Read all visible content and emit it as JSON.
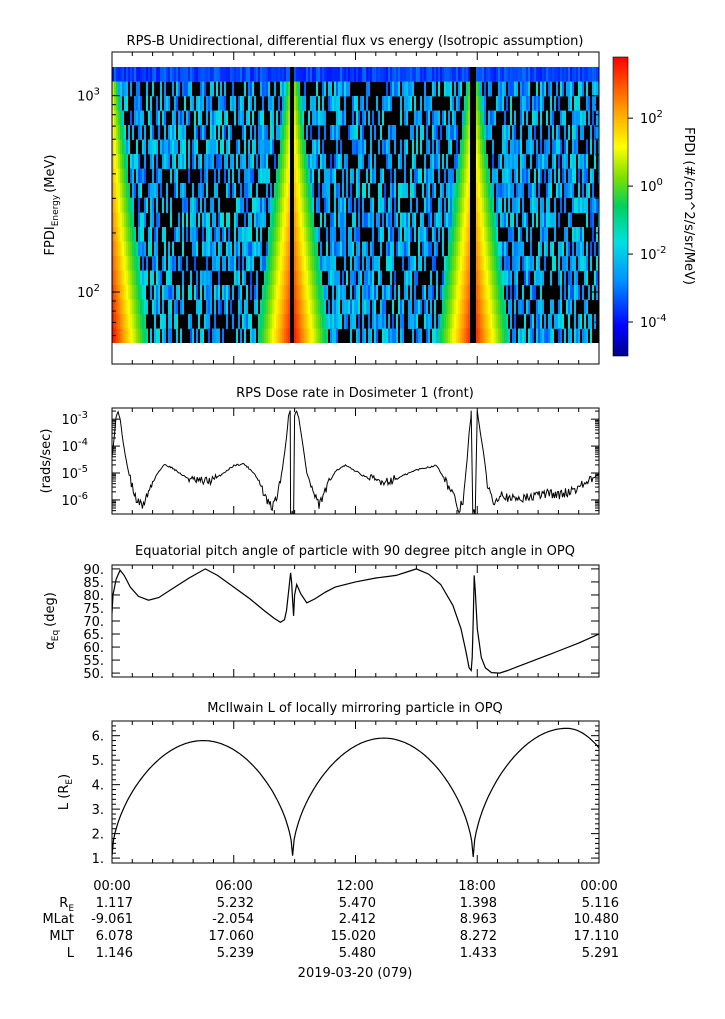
{
  "chart_data": [
    {
      "type": "heatmap",
      "title": "RPS-B  Unidirectional, differential flux vs energy (Isotropic assumption)",
      "ylabel_main": "FPDI",
      "ylabel_sub": "Energy",
      "ylabel_unit": "(MeV)",
      "y_scale": "log",
      "ylim": [
        55,
        1400
      ],
      "y_ticks": [
        {
          "base": "10",
          "exp": "2",
          "value": 100
        },
        {
          "base": "10",
          "exp": "3",
          "value": 1000
        }
      ],
      "colorbar": {
        "label": "FPDI (#/cm^2/s/sr/MeV)",
        "scale": "log",
        "range_exp": [
          -5.0,
          3.8
        ],
        "ticks": [
          {
            "base": "10",
            "exp": "2",
            "value_exp": 2
          },
          {
            "base": "10",
            "exp": "0",
            "value_exp": 0
          },
          {
            "base": "10",
            "exp": "-2",
            "value_exp": -2
          },
          {
            "base": "10",
            "exp": "-4",
            "value_exp": -4
          }
        ]
      },
      "energy_rows": 19,
      "perigee_hours": [
        0.0,
        8.9,
        17.8
      ],
      "gap_hours": [
        [
          8.75,
          8.95
        ],
        [
          17.65,
          17.95
        ]
      ]
    },
    {
      "type": "line",
      "title": "RPS  Dose rate in Dosimeter 1 (front)",
      "ylabel": "(rads/sec)",
      "y_scale": "log",
      "ylim": [
        3e-07,
        0.0026
      ],
      "y_ticks": [
        {
          "base": "10",
          "exp": "-3",
          "value": 0.001
        },
        {
          "base": "10",
          "exp": "-4",
          "value": 0.0001
        },
        {
          "base": "10",
          "exp": "-5",
          "value": 1e-05
        },
        {
          "base": "10",
          "exp": "-6",
          "value": 1e-06
        }
      ],
      "x": [
        0,
        0.1,
        0.2,
        0.3,
        0.4,
        0.5,
        0.6,
        0.7,
        0.8,
        1.0,
        1.2,
        1.5,
        1.8,
        2.2,
        2.6,
        3.0,
        3.5,
        4.0,
        4.5,
        5.0,
        5.5,
        6.0,
        6.5,
        7.0,
        7.3,
        7.6,
        7.9,
        8.2,
        8.4,
        8.6,
        8.7,
        8.78,
        8.8,
        8.88,
        8.95,
        9.0,
        9.1,
        9.2,
        9.4,
        9.6,
        9.9,
        10.2,
        10.6,
        11.0,
        11.5,
        12.0,
        12.5,
        13.0,
        13.5,
        14.0,
        14.5,
        15.0,
        15.5,
        16.0,
        16.4,
        16.8,
        17.1,
        17.3,
        17.5,
        17.6,
        17.68,
        17.7,
        17.78,
        17.85,
        17.9,
        18.0,
        18.1,
        18.3,
        18.5,
        18.8,
        19.2,
        19.6,
        20.0,
        20.5,
        21.0,
        21.5,
        22.0,
        22.5,
        23.0,
        23.5,
        24.0
      ],
      "y": [
        4e-05,
        0.00018,
        0.0012,
        0.0019,
        0.0011,
        0.00025,
        8e-05,
        3e-05,
        1.2e-05,
        3e-06,
        1e-06,
        6e-07,
        2e-06,
        9e-06,
        2.1e-05,
        1.5e-05,
        8e-06,
        5.2e-06,
        4.8e-06,
        5.5e-06,
        1e-05,
        1.9e-05,
        2.2e-05,
        1e-05,
        4e-06,
        1e-06,
        5e-07,
        2e-06,
        1.5e-05,
        0.0002,
        0.0014,
        0.002,
        3e-07,
        3e-07,
        3e-07,
        0.0014,
        0.0021,
        0.0011,
        0.00012,
        1e-05,
        2e-06,
        6e-07,
        3e-06,
        1.2e-05,
        1.9e-05,
        1.2e-05,
        7e-06,
        5.2e-06,
        5e-06,
        6e-06,
        9e-06,
        1.3e-05,
        1.6e-05,
        1.9e-05,
        6e-06,
        1.5e-06,
        4e-07,
        1e-06,
        3e-05,
        0.0003,
        0.001,
        0.002,
        3e-07,
        3e-07,
        3e-07,
        0.002,
        0.0006,
        6e-05,
        4e-06,
        8e-07,
        2e-06,
        1e-06,
        1.2e-06,
        1.2e-06,
        1.5e-06,
        1.8e-06,
        1.5e-06,
        2e-06,
        3e-06,
        5e-06,
        9e-06
      ]
    },
    {
      "type": "line",
      "title": "Equatorial pitch angle of particle with 90 degree pitch angle in OPQ",
      "ylabel_main": "α",
      "ylabel_sub": "Eq",
      "ylabel_unit": "(deg)",
      "ylim": [
        48.5,
        91.5
      ],
      "y_ticks": [
        {
          "label": "90.",
          "value": 90
        },
        {
          "label": "85.",
          "value": 85
        },
        {
          "label": "80.",
          "value": 80
        },
        {
          "label": "75.",
          "value": 75
        },
        {
          "label": "70.",
          "value": 70
        },
        {
          "label": "65.",
          "value": 65
        },
        {
          "label": "60.",
          "value": 60
        },
        {
          "label": "55.",
          "value": 55
        },
        {
          "label": "50.",
          "value": 50
        }
      ],
      "x": [
        0,
        0.05,
        0.2,
        0.4,
        0.6,
        0.9,
        1.3,
        1.8,
        2.3,
        3.0,
        3.8,
        4.6,
        5.2,
        6.0,
        6.8,
        7.5,
        8.0,
        8.3,
        8.5,
        8.6,
        8.7,
        8.8,
        8.85,
        8.9,
        8.95,
        9.0,
        9.1,
        9.3,
        9.6,
        10.0,
        10.5,
        11.0,
        12.0,
        13.0,
        14.0,
        14.6,
        15.0,
        15.6,
        16.2,
        16.8,
        17.2,
        17.45,
        17.6,
        17.7,
        17.75,
        17.8,
        17.85,
        17.9,
        18.0,
        18.2,
        18.4,
        18.7,
        19.1,
        19.5,
        20.0,
        20.5,
        21.0,
        21.5,
        22.0,
        23.0,
        24.0
      ],
      "y": [
        73,
        80,
        86,
        89.5,
        87.5,
        83,
        79.5,
        78,
        79,
        82.5,
        86.5,
        90,
        87.5,
        83,
        78.5,
        74,
        71,
        69.5,
        70.5,
        74,
        81,
        88.5,
        85,
        78,
        72,
        80,
        84,
        80.5,
        77,
        78.5,
        81,
        83,
        85,
        86.5,
        87.5,
        89,
        90,
        88,
        84,
        76,
        67,
        58,
        52,
        51,
        56,
        70,
        87.5,
        82,
        67,
        56,
        52,
        50.2,
        50,
        51,
        52.5,
        54,
        55.5,
        57,
        58.5,
        61.5,
        65
      ]
    },
    {
      "type": "line",
      "title": "McIlwain L of locally mirroring particle in OPQ",
      "ylabel_main": "L (R",
      "ylabel_sub": "E",
      "ylabel_unit": ")",
      "ylim": [
        0.8,
        6.6
      ],
      "y_ticks": [
        {
          "label": "6.",
          "value": 6
        },
        {
          "label": "5.",
          "value": 5
        },
        {
          "label": "4.",
          "value": 4
        },
        {
          "label": "3.",
          "value": 3
        },
        {
          "label": "2.",
          "value": 2
        },
        {
          "label": "1.",
          "value": 1
        }
      ],
      "apogee_hours": [
        4.5,
        13.4,
        22.4
      ],
      "apogee_L": [
        5.8,
        5.9,
        6.3
      ],
      "perigee_hours": [
        0.0,
        8.9,
        17.8
      ],
      "perigee_L": [
        1.1,
        1.1,
        1.05
      ]
    }
  ],
  "x_axis": {
    "range_hours": [
      0,
      24
    ],
    "tick_labels": [
      "00:00",
      "06:00",
      "12:00",
      "18:00",
      "00:00"
    ],
    "tick_hours": [
      0,
      6,
      12,
      18,
      24
    ],
    "minor_step_hours": 1,
    "row_labels": [
      {
        "main": "R",
        "sub": "E",
        "values": [
          "1.117",
          "5.232",
          "5.470",
          "1.398",
          "5.116"
        ]
      },
      {
        "main": "MLat",
        "sub": "",
        "values": [
          "-9.061",
          "-2.054",
          "2.412",
          "8.963",
          "10.480"
        ]
      },
      {
        "main": "MLT",
        "sub": "",
        "values": [
          "6.078",
          "17.060",
          "15.020",
          "8.272",
          "17.110"
        ]
      },
      {
        "main": "L",
        "sub": "",
        "values": [
          "1.146",
          "5.239",
          "5.480",
          "1.433",
          "5.291"
        ]
      }
    ],
    "date_label": "2019-03-20 (079)"
  }
}
